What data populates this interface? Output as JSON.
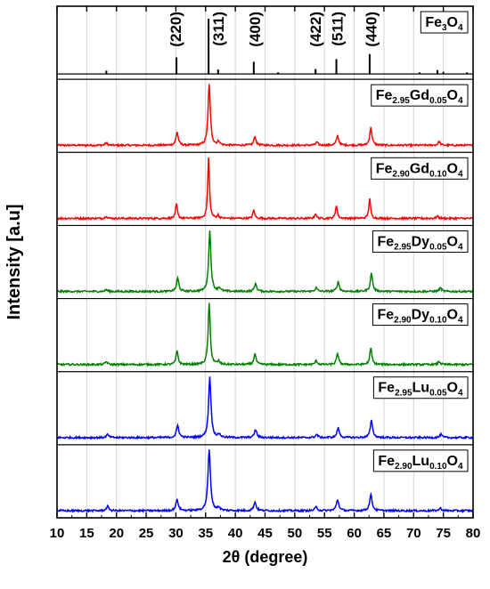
{
  "chart_data": {
    "type": "line",
    "title": "",
    "xlabel_prefix": "2",
    "xlabel_theta": "θ",
    "xlabel_suffix": " (degree)",
    "ylabel": "Intensity [a.u]",
    "xlim": [
      10,
      80
    ],
    "x_ticks": [
      "10",
      "15",
      "20",
      "25",
      "30",
      "35",
      "40",
      "45",
      "50",
      "55",
      "60",
      "65",
      "70",
      "75",
      "80"
    ],
    "grid": "vertical",
    "reference": {
      "legend": [
        {
          "t": "Fe"
        },
        {
          "t": "3",
          "sub": true
        },
        {
          "t": "O"
        },
        {
          "t": "4",
          "sub": true
        }
      ],
      "color": "#000000",
      "sticks": [
        {
          "x": 18.3,
          "h": 0.06
        },
        {
          "x": 30.1,
          "h": 0.3
        },
        {
          "x": 35.5,
          "h": 1.0
        },
        {
          "x": 37.1,
          "h": 0.08
        },
        {
          "x": 43.1,
          "h": 0.22
        },
        {
          "x": 47.2,
          "h": 0.03
        },
        {
          "x": 53.5,
          "h": 0.09
        },
        {
          "x": 57.0,
          "h": 0.27
        },
        {
          "x": 62.6,
          "h": 0.36
        },
        {
          "x": 71.0,
          "h": 0.03
        },
        {
          "x": 74.0,
          "h": 0.07
        },
        {
          "x": 75.0,
          "h": 0.04
        },
        {
          "x": 79.0,
          "h": 0.03
        }
      ],
      "hkl": [
        {
          "label": "(220)",
          "x": 30.1
        },
        {
          "label": "(311)",
          "x": 37.3
        },
        {
          "label": "(400)",
          "x": 43.4
        },
        {
          "label": "(422)",
          "x": 53.6
        },
        {
          "label": "(511)",
          "x": 57.3
        },
        {
          "label": "(440)",
          "x": 63.0
        }
      ]
    },
    "series": [
      {
        "legend": [
          {
            "t": "Fe"
          },
          {
            "t": "2.95",
            "sub": true
          },
          {
            "t": "Gd"
          },
          {
            "t": "0.05",
            "sub": true
          },
          {
            "t": "O"
          },
          {
            "t": "4",
            "sub": true
          }
        ],
        "color": "#ff0000",
        "peaks": [
          [
            18.3,
            0.04
          ],
          [
            30.2,
            0.22
          ],
          [
            35.6,
            1.0
          ],
          [
            37.2,
            0.06
          ],
          [
            43.3,
            0.14
          ],
          [
            53.7,
            0.05
          ],
          [
            57.2,
            0.16
          ],
          [
            62.8,
            0.29
          ],
          [
            74.3,
            0.06
          ]
        ],
        "width": 0.45
      },
      {
        "legend": [
          {
            "t": "Fe"
          },
          {
            "t": "2.90",
            "sub": true
          },
          {
            "t": "Gd"
          },
          {
            "t": "0.10",
            "sub": true
          },
          {
            "t": "O"
          },
          {
            "t": "4",
            "sub": true
          }
        ],
        "color": "#ff0000",
        "peaks": [
          [
            18.3,
            0.04
          ],
          [
            30.1,
            0.24
          ],
          [
            35.5,
            1.0
          ],
          [
            37.1,
            0.05
          ],
          [
            43.1,
            0.14
          ],
          [
            53.5,
            0.08
          ],
          [
            57.0,
            0.22
          ],
          [
            62.6,
            0.33
          ],
          [
            74.0,
            0.04
          ]
        ],
        "width": 0.35
      },
      {
        "legend": [
          {
            "t": "Fe"
          },
          {
            "t": "2.95",
            "sub": true
          },
          {
            "t": "Dy"
          },
          {
            "t": "0.05",
            "sub": true
          },
          {
            "t": "O"
          },
          {
            "t": "4",
            "sub": true
          }
        ],
        "color": "#008000",
        "peaks": [
          [
            18.3,
            0.03
          ],
          [
            30.3,
            0.22
          ],
          [
            35.7,
            1.0
          ],
          [
            37.3,
            0.06
          ],
          [
            43.4,
            0.13
          ],
          [
            53.6,
            0.06
          ],
          [
            57.3,
            0.16
          ],
          [
            62.9,
            0.3
          ],
          [
            74.5,
            0.06
          ]
        ],
        "width": 0.45
      },
      {
        "legend": [
          {
            "t": "Fe"
          },
          {
            "t": "2.90",
            "sub": true
          },
          {
            "t": "Dy"
          },
          {
            "t": "0.10",
            "sub": true
          },
          {
            "t": "O"
          },
          {
            "t": "4",
            "sub": true
          }
        ],
        "color": "#008000",
        "peaks": [
          [
            18.3,
            0.05
          ],
          [
            30.2,
            0.22
          ],
          [
            35.6,
            1.0
          ],
          [
            37.2,
            0.05
          ],
          [
            43.3,
            0.18
          ],
          [
            53.6,
            0.06
          ],
          [
            57.2,
            0.18
          ],
          [
            62.8,
            0.27
          ],
          [
            74.3,
            0.05
          ]
        ],
        "width": 0.42
      },
      {
        "legend": [
          {
            "t": "Fe"
          },
          {
            "t": "2.95",
            "sub": true
          },
          {
            "t": "Lu"
          },
          {
            "t": "0.05",
            "sub": true
          },
          {
            "t": "O"
          },
          {
            "t": "4",
            "sub": true
          }
        ],
        "color": "#0000ff",
        "peaks": [
          [
            18.5,
            0.05
          ],
          [
            30.3,
            0.2
          ],
          [
            35.7,
            1.0
          ],
          [
            37.3,
            0.05
          ],
          [
            43.4,
            0.13
          ],
          [
            53.7,
            0.05
          ],
          [
            57.3,
            0.16
          ],
          [
            62.9,
            0.28
          ],
          [
            74.6,
            0.05
          ]
        ],
        "width": 0.48
      },
      {
        "legend": [
          {
            "t": "Fe"
          },
          {
            "t": "2.90",
            "sub": true
          },
          {
            "t": "Lu"
          },
          {
            "t": "0.10",
            "sub": true
          },
          {
            "t": "O"
          },
          {
            "t": "4",
            "sub": true
          }
        ],
        "color": "#0000ff",
        "peaks": [
          [
            18.5,
            0.07
          ],
          [
            30.2,
            0.18
          ],
          [
            35.6,
            1.0
          ],
          [
            37.2,
            0.05
          ],
          [
            43.3,
            0.14
          ],
          [
            53.6,
            0.06
          ],
          [
            57.2,
            0.18
          ],
          [
            62.8,
            0.26
          ],
          [
            74.5,
            0.04
          ]
        ],
        "width": 0.5
      }
    ]
  }
}
